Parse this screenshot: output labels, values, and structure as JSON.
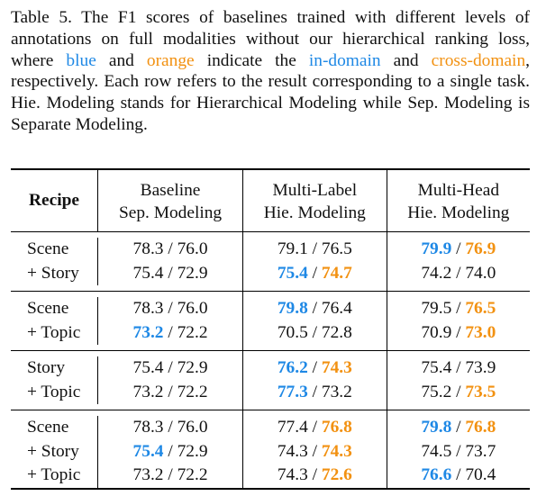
{
  "caption": {
    "p1": "Table 5. The F1 scores of baselines trained with different levels of annotations on full modalities without our hierarchical ranking loss, where ",
    "blue_word": "blue",
    "p2": " and ",
    "orange_word": "orange",
    "p3": " indicate the ",
    "in_domain": "in-domain",
    "p4": " and ",
    "cross_domain": "cross-domain",
    "p5": ", respectively. Each row refers to the result corresponding to a single task. Hie. Modeling stands for Hierarchical Modeling while Sep. Modeling is Separate Modeling."
  },
  "colors": {
    "blue": "#1e88e5",
    "orange": "#f29111"
  },
  "table": {
    "header": {
      "recipe": "Recipe",
      "col1_line1": "Baseline",
      "col1_line2": "Sep. Modeling",
      "col2_line1": "Multi-Label",
      "col2_line2": "Hie. Modeling",
      "col3_line1": "Multi-Head",
      "col3_line2": "Hie. Modeling"
    },
    "groups": [
      {
        "rows": [
          {
            "recipe": "Scene",
            "b": [
              "78.3",
              "76.0"
            ],
            "l": [
              "79.1",
              "76.5"
            ],
            "h": [
              "79.9",
              "76.9"
            ]
          },
          {
            "recipe": "+ Story",
            "b": [
              "75.4",
              "72.9"
            ],
            "l": [
              "75.4",
              "74.7"
            ],
            "h": [
              "74.2",
              "74.0"
            ]
          }
        ]
      },
      {
        "rows": [
          {
            "recipe": "Scene",
            "b": [
              "78.3",
              "76.0"
            ],
            "l": [
              "79.8",
              "76.4"
            ],
            "h": [
              "79.5",
              "76.5"
            ]
          },
          {
            "recipe": "+ Topic",
            "b": [
              "73.2",
              "72.2"
            ],
            "l": [
              "70.5",
              "72.8"
            ],
            "h": [
              "70.9",
              "73.0"
            ]
          }
        ]
      },
      {
        "rows": [
          {
            "recipe": "Story",
            "b": [
              "75.4",
              "72.9"
            ],
            "l": [
              "76.2",
              "74.3"
            ],
            "h": [
              "75.4",
              "73.9"
            ]
          },
          {
            "recipe": "+ Topic",
            "b": [
              "73.2",
              "72.2"
            ],
            "l": [
              "77.3",
              "73.2"
            ],
            "h": [
              "75.2",
              "73.5"
            ]
          }
        ]
      },
      {
        "rows": [
          {
            "recipe": "Scene",
            "b": [
              "78.3",
              "76.0"
            ],
            "l": [
              "77.4",
              "76.8"
            ],
            "h": [
              "79.8",
              "76.8"
            ]
          },
          {
            "recipe": "+ Story",
            "b": [
              "75.4",
              "72.9"
            ],
            "l": [
              "74.3",
              "74.3"
            ],
            "h": [
              "74.5",
              "73.7"
            ]
          },
          {
            "recipe": "+ Topic",
            "b": [
              "73.2",
              "72.2"
            ],
            "l": [
              "74.3",
              "72.6"
            ],
            "h": [
              "76.6",
              "70.4"
            ]
          }
        ]
      }
    ]
  }
}
